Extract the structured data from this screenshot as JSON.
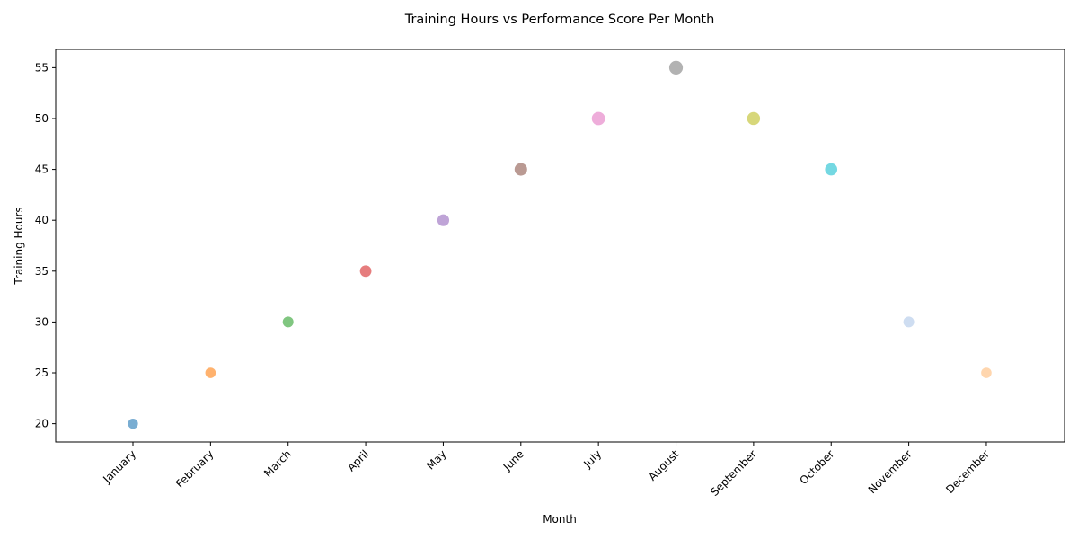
{
  "chart_data": {
    "type": "scatter",
    "title": "Training Hours vs Performance Score Per Month",
    "xlabel": "Month",
    "ylabel": "Training Hours",
    "categories": [
      "January",
      "February",
      "March",
      "April",
      "May",
      "June",
      "July",
      "August",
      "September",
      "October",
      "November",
      "December"
    ],
    "values": [
      20,
      25,
      30,
      35,
      40,
      45,
      50,
      55,
      50,
      45,
      30,
      25
    ],
    "marker_size_relative": [
      0.4,
      0.45,
      0.5,
      0.6,
      0.65,
      0.75,
      0.85,
      0.9,
      0.8,
      0.7,
      0.5,
      0.45
    ],
    "colors": [
      "#1f77b4",
      "#ff7f0e",
      "#2ca02c",
      "#d62728",
      "#9467bd",
      "#8c564b",
      "#e377c2",
      "#7f7f7f",
      "#bcbd22",
      "#17becf",
      "#aec7e8",
      "#ffbb78"
    ],
    "ylim": [
      18.2,
      56.8
    ],
    "yticks": [
      20,
      25,
      30,
      35,
      40,
      45,
      50,
      55
    ],
    "grid": false,
    "legend": "none"
  }
}
